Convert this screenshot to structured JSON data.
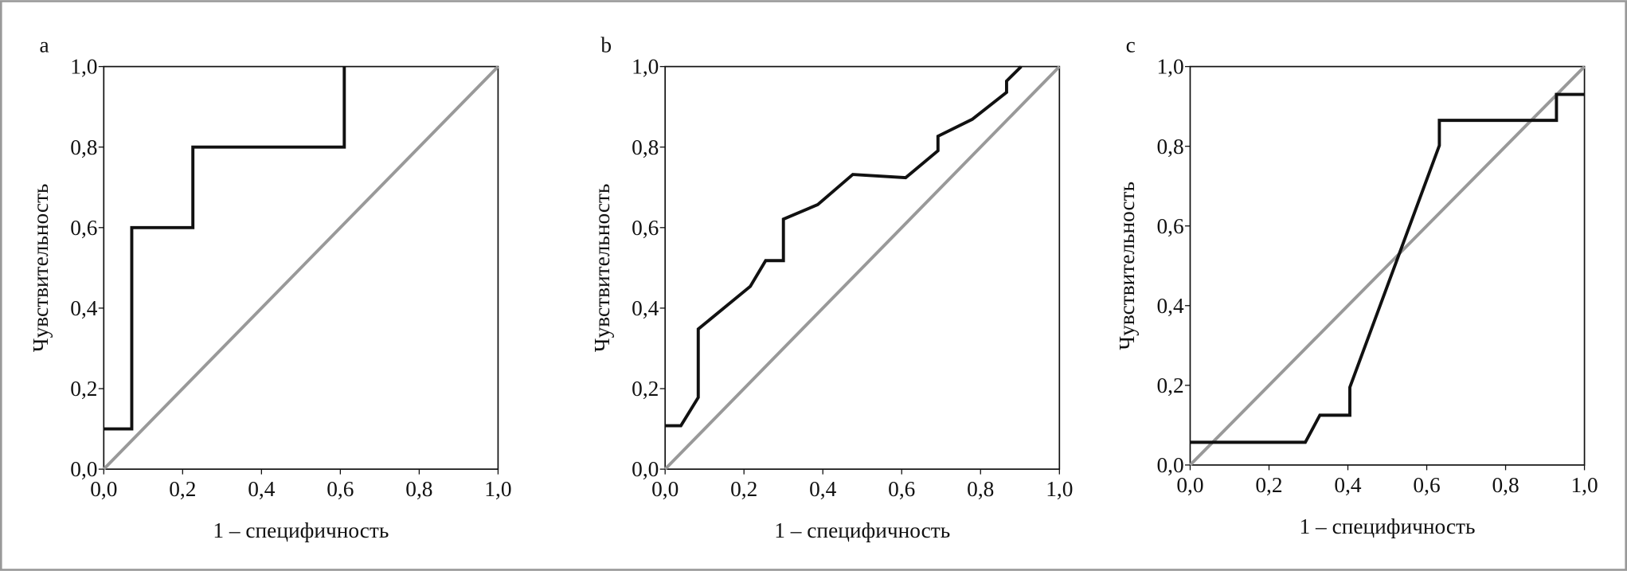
{
  "chart_data": [
    {
      "type": "line",
      "title": "a",
      "xlabel": "1 – специфичность",
      "ylabel": "Чувствительность",
      "xlim": [
        0,
        1
      ],
      "ylim": [
        0,
        1
      ],
      "xticks": [
        {
          "value": 0,
          "label": "0,0"
        },
        {
          "value": 0.2,
          "label": "0,2"
        },
        {
          "value": 0.4,
          "label": "0,4"
        },
        {
          "value": 0.6,
          "label": "0,6"
        },
        {
          "value": 0.8,
          "label": "0,8"
        },
        {
          "value": 1,
          "label": "1,0"
        }
      ],
      "yticks": [
        {
          "value": 0,
          "label": "0,0"
        },
        {
          "value": 0.2,
          "label": "0,2"
        },
        {
          "value": 0.4,
          "label": "0,4"
        },
        {
          "value": 0.6,
          "label": "0,6"
        },
        {
          "value": 0.8,
          "label": "0,8"
        },
        {
          "value": 1,
          "label": "1,0"
        }
      ],
      "series": [
        {
          "color": "#111111",
          "x": [
            0,
            0.071,
            0.071,
            0.226,
            0.226,
            0.61,
            0.61
          ],
          "values": [
            0.1,
            0.1,
            0.6,
            0.6,
            0.8,
            0.8,
            1.0
          ]
        },
        {
          "color": "#999999",
          "x": [
            0,
            1
          ],
          "values": [
            0,
            1
          ]
        }
      ]
    },
    {
      "type": "line",
      "title": "b",
      "xlabel": "1 – специфичность",
      "ylabel": "Чувствительность",
      "xlim": [
        0,
        1
      ],
      "ylim": [
        0,
        1
      ],
      "xticks": [
        {
          "value": 0,
          "label": "0,0"
        },
        {
          "value": 0.2,
          "label": "0,2"
        },
        {
          "value": 0.4,
          "label": "0,4"
        },
        {
          "value": 0.6,
          "label": "0,6"
        },
        {
          "value": 0.8,
          "label": "0,8"
        },
        {
          "value": 1,
          "label": "1,0"
        }
      ],
      "yticks": [
        {
          "value": 0,
          "label": "0,0"
        },
        {
          "value": 0.2,
          "label": "0,2"
        },
        {
          "value": 0.4,
          "label": "0,4"
        },
        {
          "value": 0.6,
          "label": "0,6"
        },
        {
          "value": 0.8,
          "label": "0,8"
        },
        {
          "value": 1,
          "label": "1,0"
        }
      ],
      "series": [
        {
          "color": "#111111",
          "x": [
            0,
            0.04,
            0.084,
            0.084,
            0.216,
            0.255,
            0.3,
            0.3,
            0.387,
            0.476,
            0.61,
            0.692,
            0.692,
            0.779,
            0.866,
            0.866,
            0.903
          ],
          "values": [
            0.108,
            0.108,
            0.178,
            0.348,
            0.454,
            0.518,
            0.518,
            0.621,
            0.657,
            0.732,
            0.724,
            0.791,
            0.827,
            0.869,
            0.936,
            0.964,
            1.0
          ]
        },
        {
          "color": "#999999",
          "x": [
            0,
            1
          ],
          "values": [
            0,
            1
          ]
        }
      ]
    },
    {
      "type": "line",
      "title": "c",
      "xlabel": "1 – специфичность",
      "ylabel": "Чувствительность",
      "xlim": [
        0,
        1
      ],
      "ylim": [
        0,
        1
      ],
      "xticks": [
        {
          "value": 0,
          "label": "0,0"
        },
        {
          "value": 0.2,
          "label": "0,2"
        },
        {
          "value": 0.4,
          "label": "0,4"
        },
        {
          "value": 0.6,
          "label": "0,6"
        },
        {
          "value": 0.8,
          "label": "0,8"
        },
        {
          "value": 1,
          "label": "1,0"
        }
      ],
      "yticks": [
        {
          "value": 0,
          "label": "0,0"
        },
        {
          "value": 0.2,
          "label": "0,2"
        },
        {
          "value": 0.4,
          "label": "0,4"
        },
        {
          "value": 0.6,
          "label": "0,6"
        },
        {
          "value": 0.8,
          "label": "0,8"
        },
        {
          "value": 1,
          "label": "1,0"
        }
      ],
      "series": [
        {
          "color": "#111111",
          "x": [
            0,
            0.292,
            0.329,
            0.405,
            0.405,
            0.632,
            0.632,
            0.929,
            0.929,
            1.0
          ],
          "values": [
            0.057,
            0.057,
            0.125,
            0.125,
            0.195,
            0.802,
            0.865,
            0.865,
            0.93,
            0.93
          ]
        },
        {
          "color": "#999999",
          "x": [
            0,
            1
          ],
          "values": [
            0,
            1
          ]
        }
      ]
    }
  ]
}
